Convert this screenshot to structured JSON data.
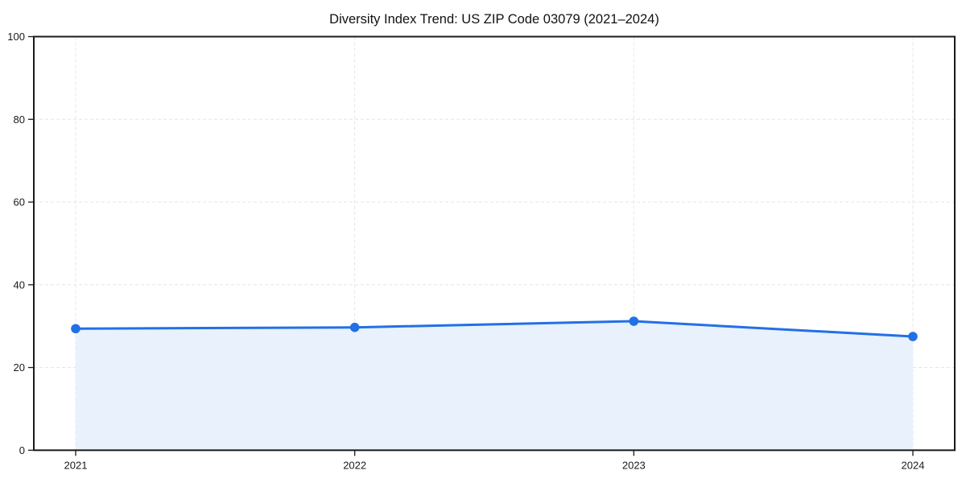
{
  "page": {
    "background_color": "#ffffff"
  },
  "chart_data": {
    "type": "line",
    "area_fill": true,
    "title": "Diversity Index Trend: US ZIP Code 03079 (2021–2024)",
    "xlabel": "",
    "ylabel": "",
    "categories": [
      "2021",
      "2022",
      "2023",
      "2024"
    ],
    "x": [
      2021,
      2022,
      2023,
      2024
    ],
    "series": [
      {
        "name": "Diversity Index",
        "values": [
          29.4,
          29.7,
          31.2,
          27.5
        ]
      }
    ],
    "xlim": [
      2020.85,
      2024.15
    ],
    "ylim": [
      0,
      100
    ],
    "yticks": [
      0,
      20,
      40,
      60,
      80,
      100
    ],
    "grid": true,
    "grid_style": "dashed",
    "legend": false,
    "marker": "circle",
    "colors": {
      "line": "#2270e6",
      "marker": "#2270e6",
      "area_fill": "#e9f1fc",
      "grid": "#e5e5e5",
      "axis_frame": "#1a1a1a",
      "tick": "#1a1a1a",
      "title_text": "#111111",
      "tick_label_text": "#1a1a1a"
    }
  }
}
